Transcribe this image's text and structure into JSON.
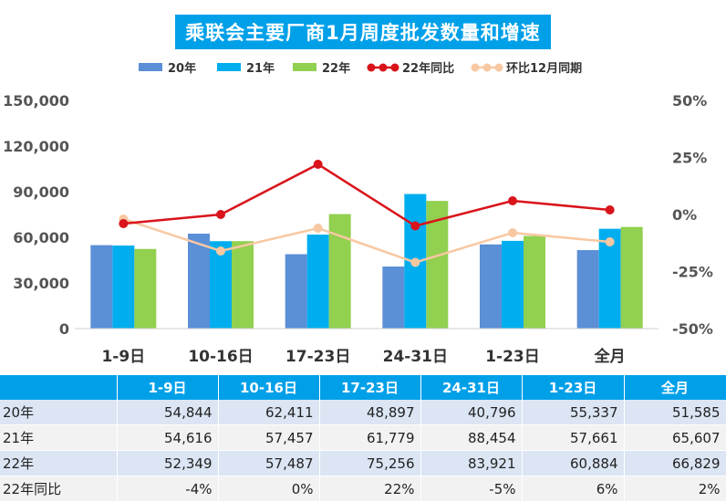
{
  "title": "乘联会主要厂商1月周度批发数量和增速",
  "chart_data": {
    "type": "bar",
    "categories": [
      "1-9日",
      "10-16日",
      "17-23日",
      "24-31日",
      "1-23日",
      "全月"
    ],
    "series": [
      {
        "name": "20年",
        "type": "bar",
        "axis": "left",
        "color": "#5b8fd6",
        "values": [
          54844,
          62411,
          48897,
          40796,
          55337,
          51585
        ]
      },
      {
        "name": "21年",
        "type": "bar",
        "axis": "left",
        "color": "#00aeef",
        "values": [
          54616,
          57457,
          61779,
          88454,
          57661,
          65607
        ]
      },
      {
        "name": "22年",
        "type": "bar",
        "axis": "left",
        "color": "#92d050",
        "values": [
          52349,
          57487,
          75256,
          83921,
          60884,
          66829
        ]
      },
      {
        "name": "22年同比",
        "type": "line",
        "axis": "right",
        "color": "#d9141b",
        "values": [
          -4,
          0,
          22,
          -5,
          6,
          2
        ]
      },
      {
        "name": "环比12月同期",
        "type": "line",
        "axis": "right",
        "color": "#f8c8a2",
        "values": [
          -2,
          -16,
          -6,
          -21,
          -8,
          -12
        ]
      }
    ],
    "y_left": {
      "range": [
        0,
        150000
      ],
      "ticks": [
        "0",
        "30,000",
        "60,000",
        "90,000",
        "120,000",
        "150,000"
      ]
    },
    "y_right": {
      "range": [
        -50,
        50
      ],
      "ticks": [
        "-50%",
        "-25%",
        "0%",
        "25%",
        "50%"
      ]
    },
    "legend_position": "top-center",
    "grid": false
  },
  "table": {
    "headers": [
      "",
      "1-9日",
      "10-16日",
      "17-23日",
      "24-31日",
      "1-23日",
      "全月"
    ],
    "rows": [
      {
        "label": "20年",
        "cells": [
          "54,844",
          "62,411",
          "48,897",
          "40,796",
          "55,337",
          "51,585"
        ]
      },
      {
        "label": "21年",
        "cells": [
          "54,616",
          "57,457",
          "61,779",
          "88,454",
          "57,661",
          "65,607"
        ]
      },
      {
        "label": "22年",
        "cells": [
          "52,349",
          "57,487",
          "75,256",
          "83,921",
          "60,884",
          "66,829"
        ]
      },
      {
        "label": "22年同比",
        "cells": [
          "-4%",
          "0%",
          "22%",
          "-5%",
          "6%",
          "2%"
        ]
      }
    ]
  }
}
